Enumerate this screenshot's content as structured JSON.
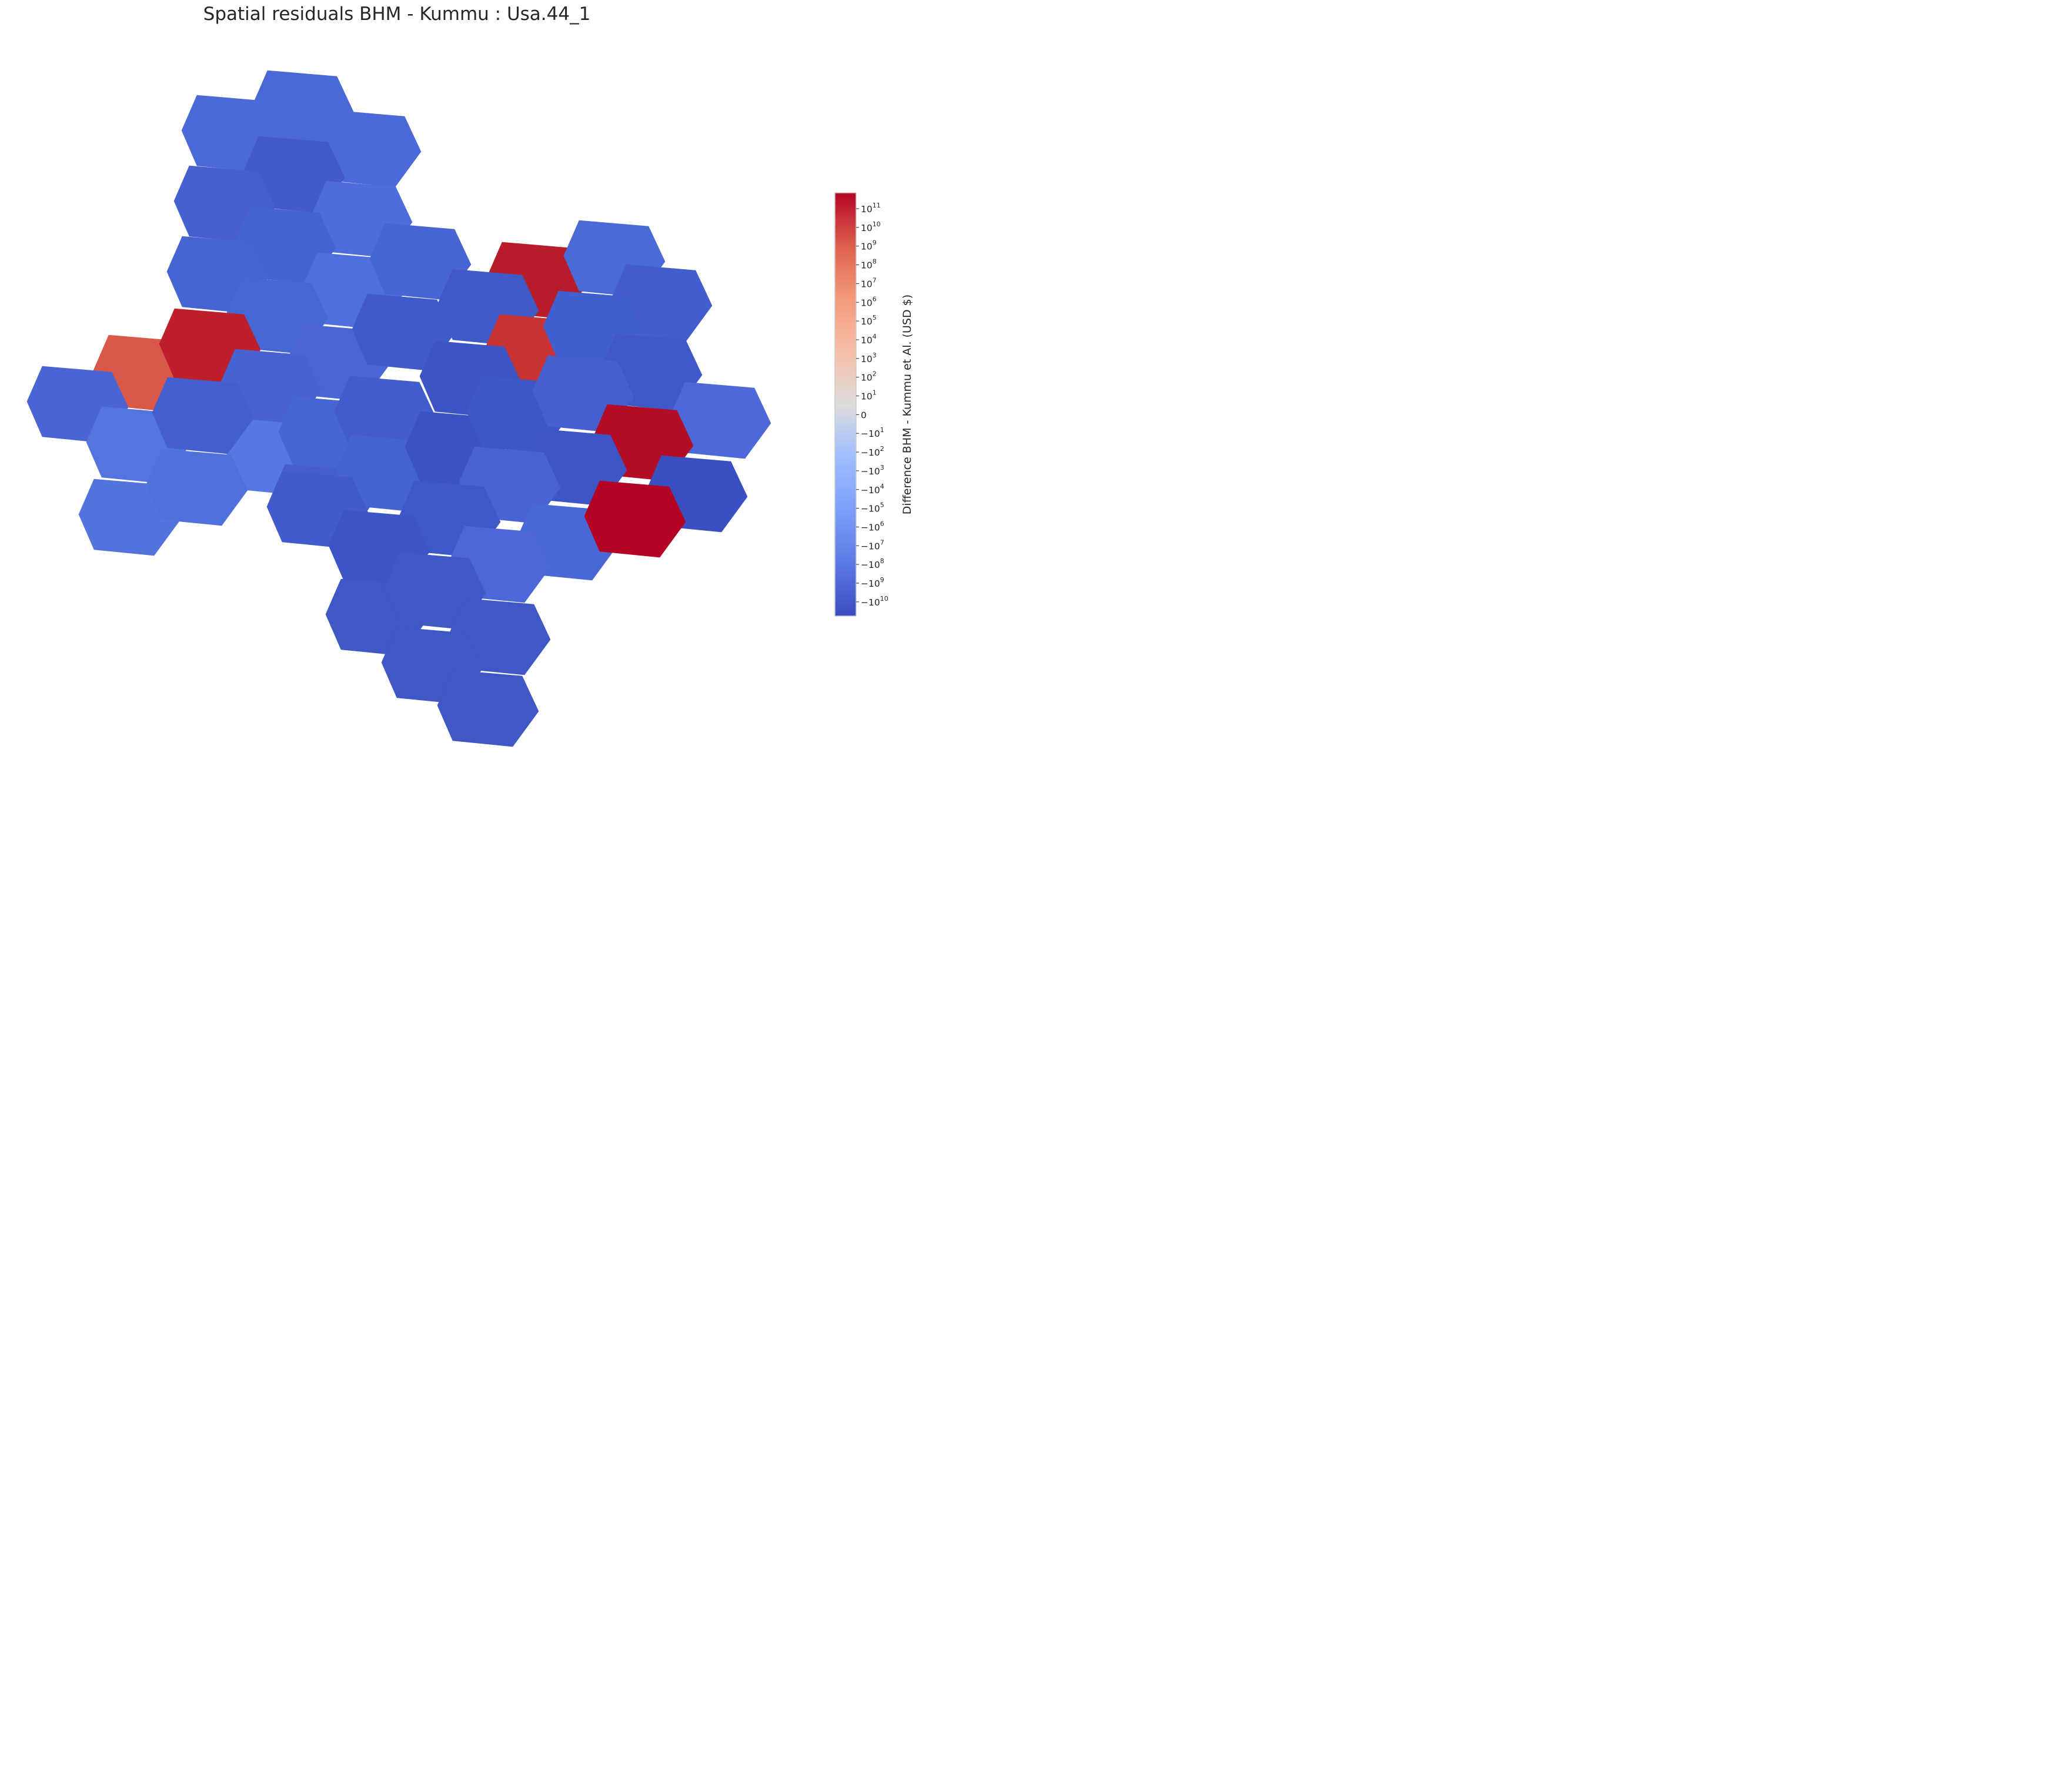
{
  "title": "Spatial residuals BHM - Kummu : Usa.44_1",
  "colorbar": {
    "label": "Difference BHM - Kummu et Al. (USD $)",
    "colormap": "coolwarm",
    "scale": "symlog",
    "ticks": [
      {
        "base": "10",
        "exp": "11"
      },
      {
        "base": "10",
        "exp": "10"
      },
      {
        "base": "10",
        "exp": "9"
      },
      {
        "base": "10",
        "exp": "8"
      },
      {
        "base": "10",
        "exp": "7"
      },
      {
        "base": "10",
        "exp": "6"
      },
      {
        "base": "10",
        "exp": "5"
      },
      {
        "base": "10",
        "exp": "4"
      },
      {
        "base": "10",
        "exp": "3"
      },
      {
        "base": "10",
        "exp": "2"
      },
      {
        "base": "10",
        "exp": "1"
      },
      {
        "base": "0",
        "exp": ""
      },
      {
        "base": "−10",
        "exp": "1"
      },
      {
        "base": "−10",
        "exp": "2"
      },
      {
        "base": "−10",
        "exp": "3"
      },
      {
        "base": "−10",
        "exp": "4"
      },
      {
        "base": "−10",
        "exp": "5"
      },
      {
        "base": "−10",
        "exp": "6"
      },
      {
        "base": "−10",
        "exp": "7"
      },
      {
        "base": "−10",
        "exp": "8"
      },
      {
        "base": "−10",
        "exp": "9"
      },
      {
        "base": "−10",
        "exp": "10"
      }
    ]
  },
  "cells": [
    {
      "id": "hex-1",
      "color": "#4a68d6"
    },
    {
      "id": "hex-2",
      "color": "#4c69d8"
    },
    {
      "id": "hex-3",
      "color": "#4b69d9"
    },
    {
      "id": "hex-4",
      "color": "#415bc9"
    },
    {
      "id": "hex-5",
      "color": "#4561cf"
    },
    {
      "id": "hex-6",
      "color": "#4e6dda"
    },
    {
      "id": "hex-7",
      "color": "#4663d2"
    },
    {
      "id": "hex-8",
      "color": "#4664d2"
    },
    {
      "id": "hex-9",
      "color": "#4f70dc"
    },
    {
      "id": "hex-10",
      "color": "#4866d3"
    },
    {
      "id": "hex-11",
      "color": "#b81d2b"
    },
    {
      "id": "hex-12",
      "color": "#4a6ad6"
    },
    {
      "id": "hex-13",
      "color": "#4767d4"
    },
    {
      "id": "hex-14",
      "color": "#3f59c6"
    },
    {
      "id": "hex-15",
      "color": "#d95847"
    },
    {
      "id": "hex-16",
      "color": "#bd1f2d"
    },
    {
      "id": "hex-17",
      "color": "#4965d3"
    },
    {
      "id": "hex-18",
      "color": "#425ecc"
    },
    {
      "id": "hex-19",
      "color": "#4966d4"
    },
    {
      "id": "hex-20",
      "color": "#c73232"
    },
    {
      "id": "hex-21",
      "color": "#4260cd"
    },
    {
      "id": "hex-22",
      "color": "#3f5acb"
    },
    {
      "id": "hex-23",
      "color": "#4663d1"
    },
    {
      "id": "hex-24",
      "color": "#5575de"
    },
    {
      "id": "hex-25",
      "color": "#5778e2"
    },
    {
      "id": "hex-26",
      "color": "#4460cf"
    },
    {
      "id": "hex-27",
      "color": "#4766d2"
    },
    {
      "id": "hex-28",
      "color": "#3e58c8"
    },
    {
      "id": "hex-29",
      "color": "#3c54c4"
    },
    {
      "id": "hex-30",
      "color": "#425dcc"
    },
    {
      "id": "hex-31",
      "color": "#4c69d7"
    },
    {
      "id": "hex-32",
      "color": "#5373dd"
    },
    {
      "id": "hex-33",
      "color": "#5070dc"
    },
    {
      "id": "hex-34",
      "color": "#4460cd"
    },
    {
      "id": "hex-35",
      "color": "#4563d1"
    },
    {
      "id": "hex-36",
      "color": "#3b52c2"
    },
    {
      "id": "hex-37",
      "color": "#3e57c7"
    },
    {
      "id": "hex-38",
      "color": "#4560ce"
    },
    {
      "id": "hex-39",
      "color": "#b30c27"
    },
    {
      "id": "hex-40",
      "color": "#3d55c5"
    },
    {
      "id": "hex-41",
      "color": "#4864d3"
    },
    {
      "id": "hex-42",
      "color": "#3f58c8"
    },
    {
      "id": "hex-43",
      "color": "#415bca"
    },
    {
      "id": "hex-44",
      "color": "#4a67d6"
    },
    {
      "id": "hex-45",
      "color": "#3c54c5"
    },
    {
      "id": "hex-46",
      "color": "#4b68d6"
    },
    {
      "id": "hex-47",
      "color": "#3b50c0"
    },
    {
      "id": "hex-48",
      "color": "#b40426"
    }
  ]
}
